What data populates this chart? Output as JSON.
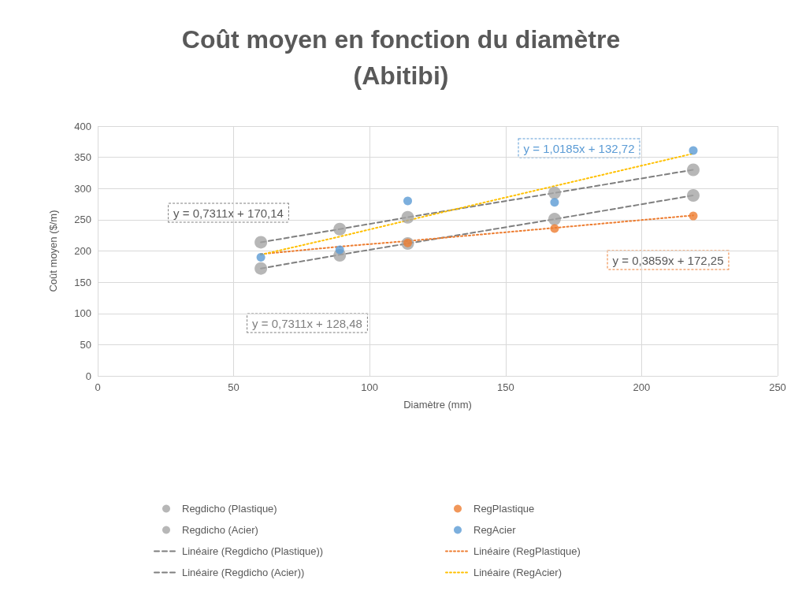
{
  "chart_data": {
    "type": "scatter",
    "title": "Coût moyen en fonction du diamètre\n(Abitibi)",
    "xlabel": "Diamètre (mm)",
    "ylabel": "Coût moyen ($/m)",
    "x": [
      60,
      89,
      114,
      168,
      219
    ],
    "series": [
      {
        "name": "Regdicho (Plastique)",
        "color": "#a5a5a5",
        "values": [
          172,
          193,
          212,
          251,
          289
        ]
      },
      {
        "name": "RegPlastique",
        "color": "#ed7d31",
        "values": [
          null,
          null,
          213,
          236,
          256
        ]
      },
      {
        "name": "Regdicho (Acier)",
        "color": "#a5a5a5",
        "values": [
          214,
          235,
          254,
          293,
          330
        ]
      },
      {
        "name": "RegAcier",
        "color": "#5b9bd5",
        "values": [
          190,
          202,
          280,
          278,
          361
        ]
      },
      {
        "name": "Linéaire (Regdicho (Plastique))",
        "type": "line",
        "color": "#7f7f7f",
        "line_style": "dashed",
        "marker": "none",
        "values": [
          172,
          194,
          212,
          251,
          289
        ]
      },
      {
        "name": "Linéaire (RegPlastique)",
        "type": "line",
        "color": "#ed7d31",
        "line_style": "dotted",
        "marker": "none",
        "values": [
          195,
          207,
          216,
          237,
          257
        ]
      },
      {
        "name": "Linéaire (Regdicho (Acier))",
        "type": "line",
        "color": "#7f7f7f",
        "line_style": "dashed",
        "marker": "none",
        "values": [
          214,
          235,
          254,
          293,
          330
        ]
      },
      {
        "name": "Linéaire (RegAcier)",
        "type": "line",
        "color": "#ffc000",
        "line_style": "dotted",
        "marker": "none",
        "values": [
          194,
          223,
          249,
          304,
          356
        ]
      }
    ],
    "xlim": [
      0,
      250
    ],
    "xticks": [
      0,
      50,
      100,
      150,
      200,
      250
    ],
    "ylim": [
      0,
      400
    ],
    "yticks": [
      0,
      50,
      100,
      150,
      200,
      250,
      300,
      350,
      400
    ],
    "grid": true,
    "legend": "bottom",
    "marker": "circle",
    "annotations": [
      "y = 0,7311x + 128,48",
      "y = 0,3859x + 172,25",
      "y = 0,7311x + 170,14",
      "y = 1,0185x + 132,72"
    ]
  }
}
